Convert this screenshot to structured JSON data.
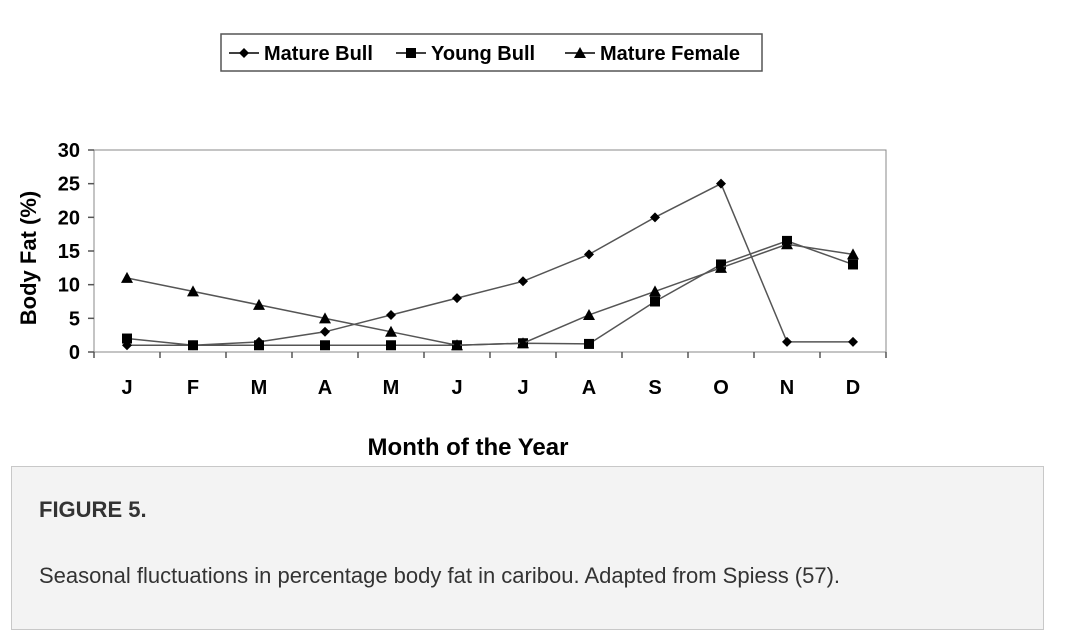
{
  "chart_data": {
    "type": "line",
    "categories": [
      "J",
      "F",
      "M",
      "A",
      "M",
      "J",
      "J",
      "A",
      "S",
      "O",
      "N",
      "D"
    ],
    "series": [
      {
        "name": "Mature Bull",
        "marker": "diamond",
        "values": [
          1,
          1,
          1.5,
          3,
          5.5,
          8,
          10.5,
          14.5,
          20,
          25,
          1.5,
          1.5
        ]
      },
      {
        "name": "Young Bull",
        "marker": "square",
        "values": [
          2,
          1,
          1,
          1,
          1,
          1,
          1.3,
          1.2,
          7.5,
          13,
          16.5,
          13
        ]
      },
      {
        "name": "Mature Female",
        "marker": "triangle",
        "values": [
          11,
          9,
          7,
          5,
          3,
          1,
          1.3,
          5.5,
          9,
          12.5,
          16,
          14.5
        ]
      }
    ],
    "xlabel": "Month of the Year",
    "ylabel": "Body Fat (%)",
    "ylim": [
      0,
      30
    ],
    "yticks": [
      0,
      5,
      10,
      15,
      20,
      25,
      30
    ],
    "legend_position": "top",
    "grid": false,
    "line_color": "#555555",
    "marker_color": "#000000"
  },
  "caption": {
    "title": "FIGURE 5.",
    "text": "Seasonal fluctuations in percentage body fat in caribou. Adapted from Spiess (57)."
  }
}
